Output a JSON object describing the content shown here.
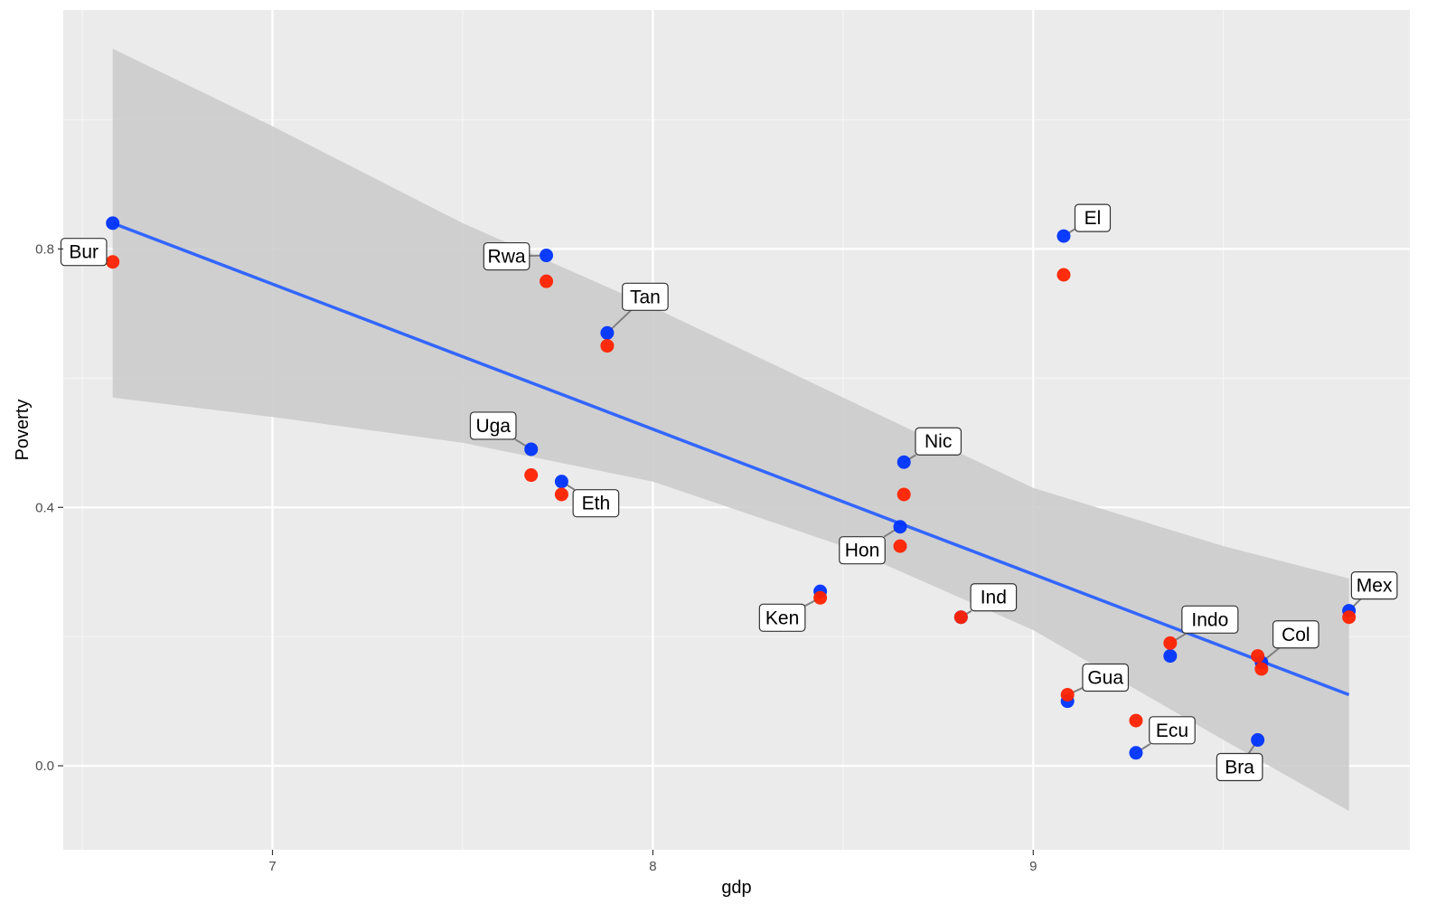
{
  "chart_data": {
    "type": "scatter",
    "title": "",
    "xlabel": "gdp",
    "ylabel": "Poverty",
    "xlim": [
      6.45,
      9.99
    ],
    "ylim": [
      -0.13,
      1.17
    ],
    "x_ticks": [
      7,
      8,
      9
    ],
    "x_tick_labels": [
      "7",
      "8",
      "9"
    ],
    "y_ticks": [
      0.0,
      0.4,
      0.8
    ],
    "y_tick_labels": [
      "0.0",
      "0.4",
      "0.8"
    ],
    "grid": true,
    "legend": "none",
    "colors": {
      "panel_background": "#ebebeb",
      "grid_major": "#ffffff",
      "grid_minor": "#f5f5f5",
      "ribbon": "#cccccc",
      "fit_line": "#3366ff",
      "series_blue": "#0033ff",
      "series_red": "#ff2200",
      "series_mixed": "#4c4ce6"
    },
    "fit_line": {
      "x": [
        6.58,
        9.83
      ],
      "y": [
        0.84,
        0.11
      ]
    },
    "confidence_band": {
      "x": [
        6.58,
        7.0,
        7.5,
        8.0,
        8.5,
        9.0,
        9.5,
        9.83
      ],
      "upper": [
        1.11,
        0.99,
        0.84,
        0.71,
        0.57,
        0.43,
        0.34,
        0.29
      ],
      "lower": [
        0.57,
        0.54,
        0.5,
        0.44,
        0.34,
        0.21,
        0.04,
        -0.07
      ]
    },
    "series": [
      {
        "color": "#0033ff",
        "x": [
          6.58,
          7.72,
          7.88,
          7.68,
          7.76,
          8.44,
          8.65,
          8.66,
          8.81,
          9.08,
          9.09,
          9.27,
          9.36,
          9.59,
          9.6,
          9.83
        ],
        "y": [
          0.84,
          0.79,
          0.67,
          0.49,
          0.44,
          0.27,
          0.37,
          0.47,
          0.23,
          0.82,
          0.1,
          0.02,
          0.17,
          0.04,
          0.16,
          0.24
        ]
      },
      {
        "color": "#ff2200",
        "x": [
          6.58,
          7.72,
          7.88,
          7.68,
          7.76,
          8.44,
          8.65,
          8.66,
          8.81,
          9.08,
          9.09,
          9.27,
          9.36,
          9.59,
          9.6,
          9.83
        ],
        "y": [
          0.78,
          0.75,
          0.65,
          0.45,
          0.42,
          0.26,
          0.34,
          0.42,
          0.23,
          0.76,
          0.11,
          0.07,
          0.19,
          0.17,
          0.15,
          0.23
        ]
      }
    ],
    "point_labels": [
      {
        "text": "Bur",
        "x": 6.58,
        "y": 0.78
      },
      {
        "text": "Rwa",
        "x": 7.72,
        "y": 0.79
      },
      {
        "text": "Tan",
        "x": 7.88,
        "y": 0.67
      },
      {
        "text": "Uga",
        "x": 7.68,
        "y": 0.49
      },
      {
        "text": "Eth",
        "x": 7.76,
        "y": 0.44
      },
      {
        "text": "Ken",
        "x": 8.44,
        "y": 0.26
      },
      {
        "text": "Hon",
        "x": 8.65,
        "y": 0.37
      },
      {
        "text": "Nic",
        "x": 8.66,
        "y": 0.47
      },
      {
        "text": "Ind",
        "x": 8.81,
        "y": 0.23
      },
      {
        "text": "El",
        "x": 9.08,
        "y": 0.82
      },
      {
        "text": "Gua",
        "x": 9.09,
        "y": 0.11
      },
      {
        "text": "Ecu",
        "x": 9.27,
        "y": 0.02
      },
      {
        "text": "Indo",
        "x": 9.36,
        "y": 0.19
      },
      {
        "text": "Bra",
        "x": 9.59,
        "y": 0.04
      },
      {
        "text": "Col",
        "x": 9.6,
        "y": 0.16
      },
      {
        "text": "Mex",
        "x": 9.83,
        "y": 0.24
      }
    ]
  }
}
